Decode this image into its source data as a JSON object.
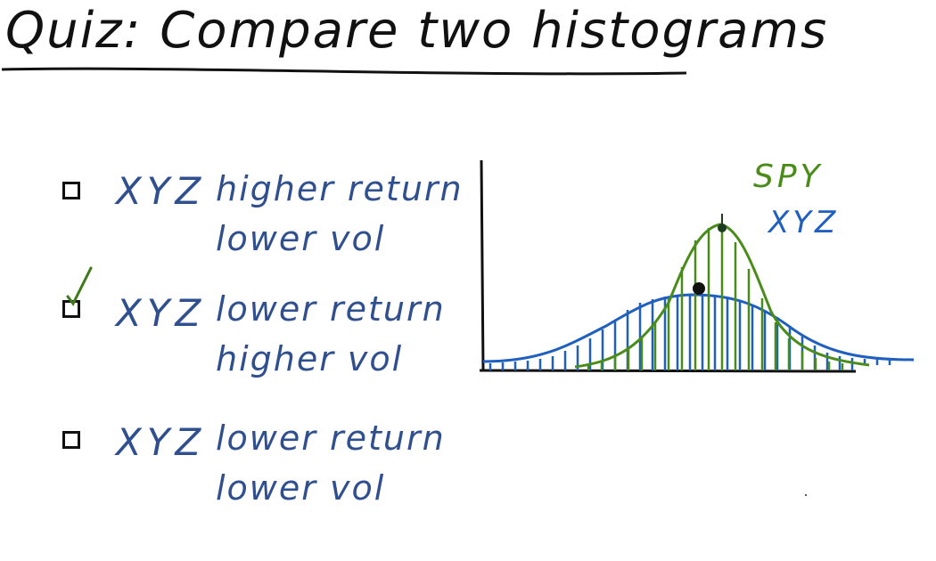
{
  "title": "Quiz: Compare two histograms",
  "options": [
    {
      "asset": "XYZ",
      "line1": "higher return",
      "line2": "lower vol",
      "checked": false
    },
    {
      "asset": "XYZ",
      "line1": "lower return",
      "line2": "higher vol",
      "checked": true
    },
    {
      "asset": "XYZ",
      "line1": "lower return",
      "line2": "lower vol",
      "checked": false
    }
  ],
  "chart_data": {
    "type": "histogram-sketch",
    "series": [
      {
        "name": "SPY",
        "color": "#4a8c1a",
        "shape": "narrow tall"
      },
      {
        "name": "XYZ",
        "color": "#1f5fc0",
        "shape": "wide flat"
      }
    ],
    "legend": [
      "SPY",
      "XYZ"
    ]
  },
  "colors": {
    "ink": "#111111",
    "handwriting": "#2f4f8f",
    "spy": "#4a8c1a",
    "xyz": "#1f5fc0"
  }
}
